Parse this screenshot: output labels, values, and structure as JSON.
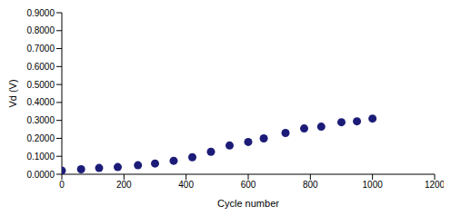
{
  "chart_data": {
    "type": "scatter",
    "x_label": "Cycle number",
    "y_label": "Vd (V)",
    "x": [
      0,
      62,
      120,
      180,
      245,
      300,
      360,
      420,
      480,
      540,
      600,
      650,
      720,
      780,
      835,
      900,
      950,
      1000
    ],
    "values": [
      0.02,
      0.028,
      0.035,
      0.04,
      0.05,
      0.06,
      0.075,
      0.095,
      0.125,
      0.16,
      0.18,
      0.2,
      0.23,
      0.255,
      0.265,
      0.29,
      0.295,
      0.31
    ],
    "color": "#1c1c78",
    "marker": "circle",
    "xlim": [
      0,
      1200
    ],
    "xticks": [
      0,
      200,
      400,
      600,
      800,
      1000,
      1200
    ],
    "ylim": [
      0,
      0.9
    ],
    "yticks": [
      {
        "value": 0,
        "label": "0.0000"
      },
      {
        "value": 0.1,
        "label": "0.1000"
      },
      {
        "value": 0.2,
        "label": "0.2000"
      },
      {
        "value": 0.3,
        "label": "0.3000"
      },
      {
        "value": 0.4,
        "label": "0.4000"
      },
      {
        "value": 0.5,
        "label": "0.5000"
      },
      {
        "value": 0.6,
        "label": "0.6000"
      },
      {
        "value": 0.7,
        "label": "0.7000"
      },
      {
        "value": 0.8,
        "label": "0.8000"
      },
      {
        "value": 0.9,
        "label": "0.9000"
      }
    ],
    "grid": false
  }
}
